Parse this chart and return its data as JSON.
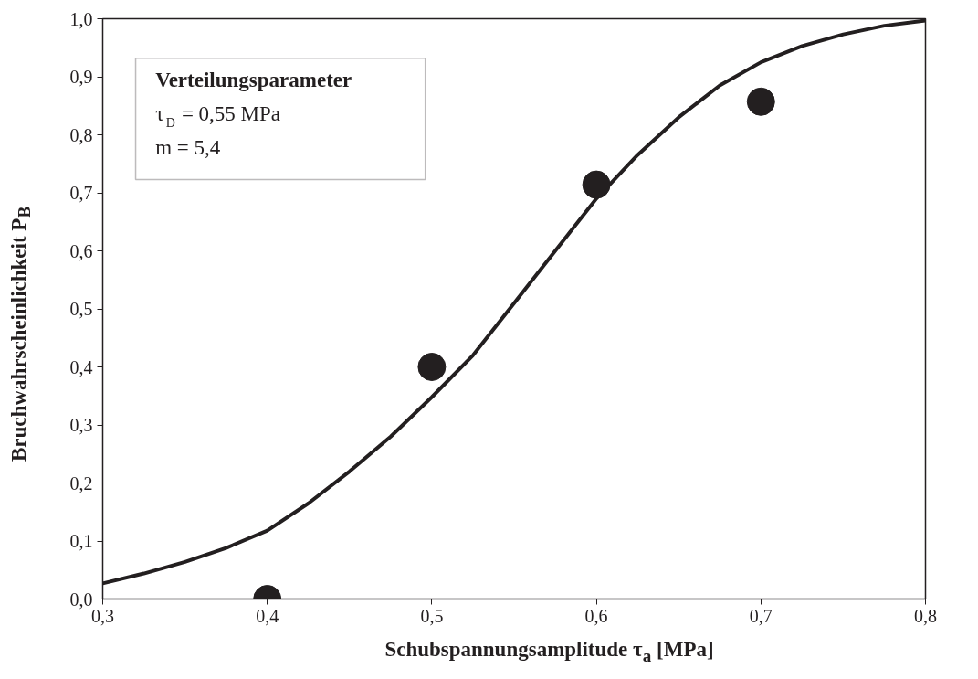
{
  "chart_data": {
    "type": "scatter",
    "xlabel": "Schubspannungsamplitude τ$_{a}$ [MPa]",
    "ylabel": "Bruchwahrscheinlichkeit P$_{B}$",
    "annotations": [
      "Verteilungsparameter",
      "τ$_{D}$ = 0,55 MPa",
      "m = 5,4"
    ],
    "xlim": [
      0.3,
      0.8
    ],
    "ylim": [
      0.0,
      1.0
    ],
    "xticks": [
      {
        "value": 0.3,
        "label": "0,3"
      },
      {
        "value": 0.4,
        "label": "0,4"
      },
      {
        "value": 0.5,
        "label": "0,5"
      },
      {
        "value": 0.6,
        "label": "0,6"
      },
      {
        "value": 0.7,
        "label": "0,7"
      },
      {
        "value": 0.8,
        "label": "0,8"
      }
    ],
    "yticks": [
      {
        "value": 0.0,
        "label": "0,0"
      },
      {
        "value": 0.1,
        "label": "0,1"
      },
      {
        "value": 0.2,
        "label": "0,2"
      },
      {
        "value": 0.3,
        "label": "0,3"
      },
      {
        "value": 0.4,
        "label": "0,4"
      },
      {
        "value": 0.5,
        "label": "0,5"
      },
      {
        "value": 0.6,
        "label": "0,6"
      },
      {
        "value": 0.7,
        "label": "0,7"
      },
      {
        "value": 0.8,
        "label": "0,8"
      },
      {
        "value": 0.9,
        "label": "0,9"
      },
      {
        "value": 1.0,
        "label": "1,0"
      }
    ],
    "series": [
      {
        "type": "line",
        "color": "#231f20",
        "line_style": "solid",
        "x": [
          0.3,
          0.325,
          0.35,
          0.375,
          0.4,
          0.425,
          0.45,
          0.475,
          0.5,
          0.525,
          0.55,
          0.575,
          0.6,
          0.625,
          0.65,
          0.675,
          0.7,
          0.725,
          0.75,
          0.775,
          0.8
        ],
        "values": [
          0.027,
          0.044,
          0.064,
          0.088,
          0.118,
          0.165,
          0.22,
          0.28,
          0.348,
          0.42,
          0.51,
          0.6,
          0.69,
          0.765,
          0.83,
          0.885,
          0.925,
          0.953,
          0.973,
          0.988,
          0.997
        ]
      },
      {
        "color": "#231f20",
        "marker": "circle",
        "x": [
          0.4,
          0.5,
          0.6,
          0.7
        ],
        "values": [
          0.0,
          0.4,
          0.714,
          0.857
        ]
      }
    ]
  }
}
